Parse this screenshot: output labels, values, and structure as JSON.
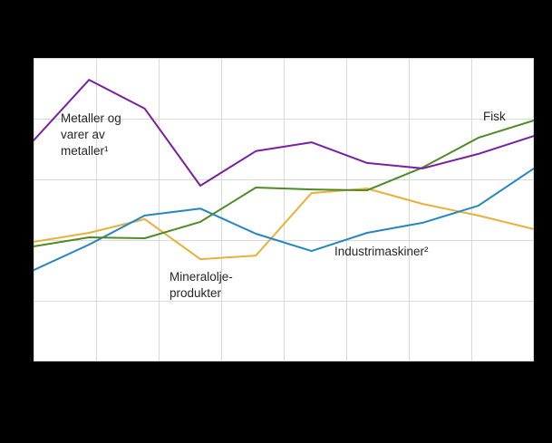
{
  "chart_data": {
    "type": "line",
    "x": [
      1,
      2,
      3,
      4,
      5,
      6,
      7,
      8,
      9,
      10
    ],
    "ylim": [
      0,
      100
    ],
    "grid": true,
    "axis_tick_labels_visible": false,
    "series": [
      {
        "id": "mineraloljeprodukter",
        "label": "Mineralolje-produkter",
        "color": "#e9b03c",
        "values": [
          39.4,
          42.4,
          46.9,
          33.7,
          34.9,
          55.5,
          57.0,
          51.9,
          48.1,
          43.6
        ]
      },
      {
        "id": "industrimaskiner",
        "label": "Industrimaskiner²",
        "color": "#2286c3",
        "values": [
          30.1,
          38.5,
          48.1,
          50.4,
          42.1,
          36.4,
          42.4,
          45.7,
          51.3,
          63.6
        ]
      },
      {
        "id": "fisk",
        "label": "Fisk",
        "color": "#4e8b25",
        "values": [
          37.9,
          40.9,
          40.6,
          46.0,
          57.3,
          56.7,
          56.4,
          63.9,
          73.7,
          79.4
        ]
      },
      {
        "id": "metaller",
        "label": "Metaller og varer av metaller¹",
        "color": "#7b1fa2",
        "values": [
          72.8,
          92.8,
          83.3,
          57.9,
          69.3,
          72.2,
          65.4,
          63.6,
          68.4,
          74.3
        ]
      }
    ]
  }
}
